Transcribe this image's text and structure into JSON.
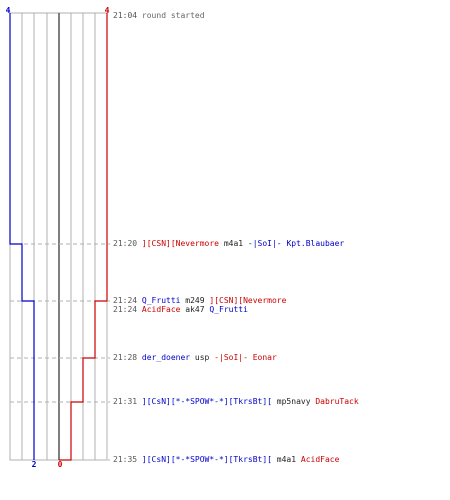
{
  "colors": {
    "blue_team": "#0000cc",
    "red_team": "#cc0000",
    "grid": "#b0b0b0",
    "center_line": "#555555",
    "time_text": "#555555",
    "weapon_text": "#222222",
    "message_text": "#666666"
  },
  "score": {
    "blue_start": "4",
    "red_start": "4",
    "blue_final": "2",
    "red_final": "0"
  },
  "events": [
    {
      "time": "21:04",
      "message": "round started"
    },
    {
      "time": "21:20",
      "killer": "][CSN][Nevermore",
      "killer_team": "red",
      "weapon": "m4a1",
      "victim": "-|SoI|- Kpt.Blaubaer",
      "victim_team": "blue"
    },
    {
      "time": "21:24",
      "killer": "Q_Frutti",
      "killer_team": "blue",
      "weapon": "m249",
      "victim": "][CSN][Nevermore",
      "victim_team": "red"
    },
    {
      "time": "21:24",
      "killer": "AcidFace",
      "killer_team": "red",
      "weapon": "ak47",
      "victim": "Q_Frutti",
      "victim_team": "blue"
    },
    {
      "time": "21:28",
      "killer": "der_doener",
      "killer_team": "blue",
      "weapon": "usp",
      "victim": "-|SoI|- Eonar",
      "victim_team": "red"
    },
    {
      "time": "21:31",
      "killer": "][CsN][*-*SPOW*-*][TkrsBt][",
      "killer_team": "blue",
      "weapon": "mp5navy",
      "victim": "DabruTack",
      "victim_team": "red"
    },
    {
      "time": "21:35",
      "killer": "][CsN][*-*SPOW*-*][TkrsBt][",
      "killer_team": "blue",
      "weapon": "m4a1",
      "victim": "AcidFace",
      "victim_team": "red"
    }
  ]
}
